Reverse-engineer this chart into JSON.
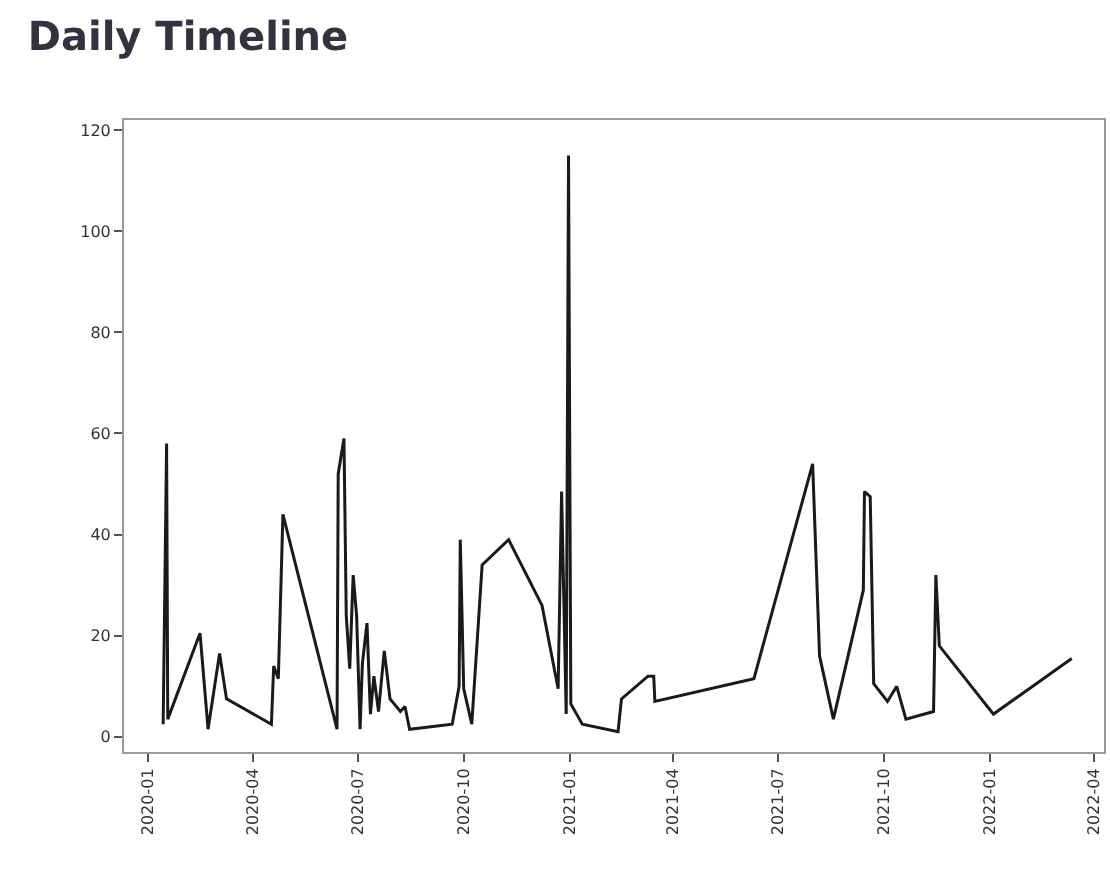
{
  "chart_data": {
    "type": "line",
    "title": "Daily Timeline",
    "x": [
      "2020-01-14",
      "2020-01-17",
      "2020-01-18",
      "2020-02-15",
      "2020-02-22",
      "2020-03-03",
      "2020-03-09",
      "2020-04-17",
      "2020-04-19",
      "2020-04-23",
      "2020-04-27",
      "2020-06-13",
      "2020-06-14",
      "2020-06-19",
      "2020-06-21",
      "2020-06-24",
      "2020-06-27",
      "2020-06-30",
      "2020-07-03",
      "2020-07-05",
      "2020-07-09",
      "2020-07-12",
      "2020-07-15",
      "2020-07-19",
      "2020-07-24",
      "2020-07-29",
      "2020-08-07",
      "2020-08-11",
      "2020-08-15",
      "2020-09-21",
      "2020-09-27",
      "2020-09-28",
      "2020-10-01",
      "2020-10-08",
      "2020-10-17",
      "2020-11-09",
      "2020-12-08",
      "2020-12-22",
      "2020-12-25",
      "2020-12-29",
      "2020-12-31",
      "2021-01-02",
      "2021-01-12",
      "2021-02-12",
      "2021-02-15",
      "2021-03-10",
      "2021-03-15",
      "2021-03-16",
      "2021-06-10",
      "2021-07-31",
      "2021-08-06",
      "2021-08-18",
      "2021-09-13",
      "2021-09-14",
      "2021-09-19",
      "2021-09-22",
      "2021-10-04",
      "2021-10-12",
      "2021-10-20",
      "2021-11-13",
      "2021-11-15",
      "2021-11-18",
      "2022-01-04",
      "2022-03-13"
    ],
    "series": [
      {
        "color": "#1a1a1a",
        "values": [
          2.5,
          58,
          3.5,
          20.5,
          1.5,
          16.5,
          7.5,
          2.5,
          14,
          11.5,
          44,
          1.5,
          52,
          59,
          24,
          13.5,
          32,
          24,
          1.5,
          14.5,
          22.5,
          4.5,
          12,
          5,
          17,
          7.5,
          5,
          6,
          1.5,
          2.5,
          10,
          39,
          9.5,
          2.5,
          34,
          39,
          26,
          9.5,
          48.5,
          4.5,
          115,
          6.5,
          2.5,
          1,
          7.5,
          12,
          12,
          7,
          11.5,
          54,
          16,
          3.5,
          29,
          48.5,
          47.5,
          10.5,
          7,
          10,
          3.5,
          5,
          32,
          18,
          4.5,
          15.5
        ]
      }
    ],
    "xlim": [
      "2019-12-11",
      "2022-04-10"
    ],
    "xticks": [
      {
        "value": "2020-01-01",
        "label": "2020-01"
      },
      {
        "value": "2020-04-01",
        "label": "2020-04"
      },
      {
        "value": "2020-07-01",
        "label": "2020-07"
      },
      {
        "value": "2020-10-01",
        "label": "2020-10"
      },
      {
        "value": "2021-01-01",
        "label": "2021-01"
      },
      {
        "value": "2021-04-01",
        "label": "2021-04"
      },
      {
        "value": "2021-07-01",
        "label": "2021-07"
      },
      {
        "value": "2021-10-01",
        "label": "2021-10"
      },
      {
        "value": "2022-01-01",
        "label": "2022-01"
      },
      {
        "value": "2022-04-01",
        "label": "2022-04"
      }
    ],
    "ylim": [
      -3,
      122
    ],
    "yticks": [
      0,
      20,
      40,
      60,
      80,
      100,
      120
    ],
    "marker": "none",
    "line_style": "solid"
  }
}
